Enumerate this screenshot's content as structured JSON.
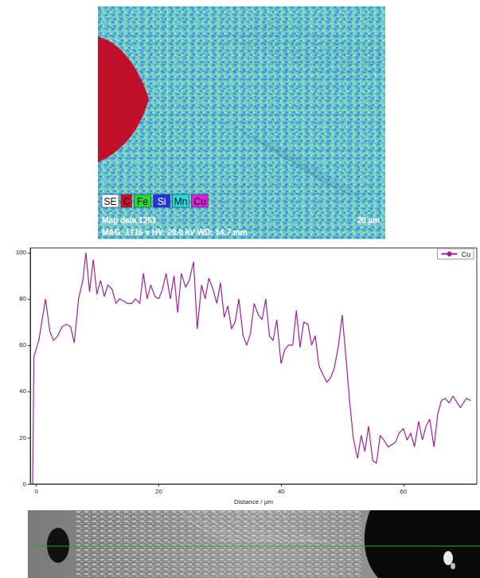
{
  "map": {
    "labels": [
      {
        "text": "SE",
        "color": "#ffffff"
      },
      {
        "text": "C",
        "color": "#d0102a"
      },
      {
        "text": "Fe",
        "color": "#22dd33"
      },
      {
        "text": "Si",
        "color": "#2233dd"
      },
      {
        "text": "Mn",
        "color": "#22dddd"
      },
      {
        "text": "Cu",
        "color": "#dd22dd"
      }
    ],
    "title": "Map data 1251",
    "info": "MAG: 1716 x HV: 20.0 kV WD: 14.7 mm",
    "scale": "20 µm"
  },
  "chart_data": {
    "type": "line",
    "x_label": "Distance / µm",
    "x": [
      -0.6,
      -0.4,
      0.4,
      1.5,
      2.2,
      2.8,
      3.5,
      4.2,
      4.9,
      5.6,
      6.2,
      6.9,
      7.6,
      8.1,
      8.7,
      9.3,
      9.9,
      10.5,
      11.1,
      11.7,
      12.4,
      13.0,
      13.6,
      14.3,
      14.9,
      15.6,
      16.2,
      16.9,
      17.5,
      18.1,
      18.7,
      19.4,
      20.0,
      20.6,
      21.2,
      21.9,
      22.5,
      23.1,
      23.7,
      24.4,
      25.0,
      25.7,
      26.3,
      27.0,
      27.6,
      28.2,
      28.9,
      29.5,
      30.1,
      30.7,
      31.3,
      31.9,
      32.5,
      33.1,
      33.8,
      34.4,
      35.0,
      35.6,
      36.3,
      36.9,
      37.5,
      38.1,
      38.7,
      39.3,
      40.0,
      40.6,
      41.2,
      41.9,
      42.5,
      43.1,
      43.7,
      44.4,
      45.0,
      45.6,
      46.2,
      46.9,
      47.5,
      48.1,
      48.7,
      49.4,
      50.0,
      50.6,
      51.2,
      51.8,
      52.5,
      53.1,
      53.7,
      54.3,
      55.0,
      55.6,
      56.2,
      56.8,
      57.5,
      58.1,
      58.7,
      59.3,
      60.0,
      60.6,
      61.2,
      61.8,
      62.5,
      63.1,
      63.7,
      64.3,
      65.0,
      65.6,
      66.2,
      66.8,
      67.5,
      68.1,
      69.3,
      70.3,
      71.0
    ],
    "series": [
      {
        "name": "Cu",
        "color": "#a020a0",
        "values": [
          0,
          55,
          62,
          80,
          66,
          62,
          64,
          68,
          69,
          68,
          61,
          80,
          88,
          100,
          83,
          97,
          82,
          88,
          81,
          86,
          84,
          78,
          80,
          79,
          78,
          78,
          80,
          78,
          91,
          80,
          86,
          81,
          80,
          84,
          91,
          80,
          90,
          74,
          91,
          85,
          88,
          96,
          67,
          86,
          80,
          89,
          84,
          78,
          87,
          72,
          77,
          67,
          70,
          80,
          64,
          60,
          65,
          78,
          73,
          71,
          80,
          64,
          62,
          71,
          52,
          58,
          60,
          60,
          75,
          59,
          70,
          69,
          60,
          64,
          51,
          47,
          44,
          46,
          50,
          60,
          73,
          55,
          36,
          20,
          11,
          21,
          14,
          25,
          10,
          9,
          21,
          19,
          16,
          17,
          18,
          22,
          24,
          19,
          22,
          16,
          27,
          19,
          25,
          28,
          16,
          30,
          36,
          37,
          35,
          38,
          33,
          37,
          36
        ]
      }
    ],
    "xlim": [
      -1,
      72
    ],
    "xticks": [
      0,
      20,
      40,
      60
    ],
    "ylim": [
      0,
      102
    ],
    "yticks": [
      0,
      20,
      40,
      60,
      80,
      100
    ],
    "grid": false,
    "legend": "upper right"
  }
}
